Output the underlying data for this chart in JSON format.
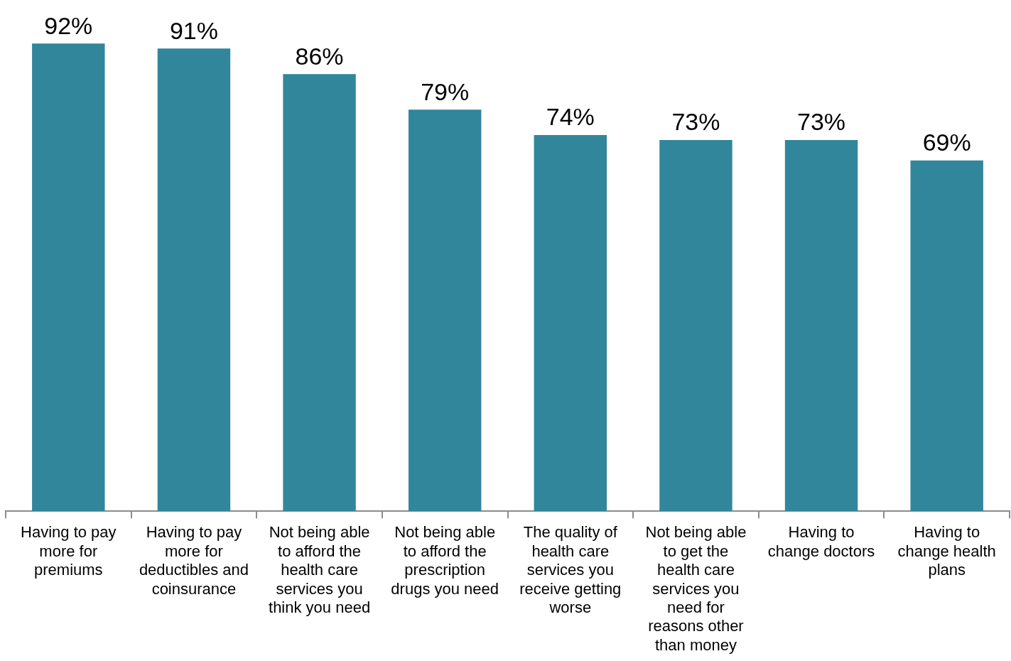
{
  "chart_data": {
    "type": "bar",
    "categories": [
      "Having to pay more for premiums",
      "Having to pay more for deductibles and coinsurance",
      "Not being able to afford the health care services you think you need",
      "Not being able to afford the prescription drugs you need",
      "The quality of health care services you receive getting worse",
      "Not being able to get the health care services you need for reasons other than money",
      "Having to change doctors",
      "Having to change health plans"
    ],
    "values": [
      92,
      91,
      86,
      79,
      74,
      73,
      73,
      69
    ],
    "value_labels": [
      "92%",
      "91%",
      "86%",
      "79%",
      "74%",
      "73%",
      "73%",
      "69%"
    ],
    "color": "#32869c",
    "tick_labels": "x",
    "grid": false,
    "legend": false
  }
}
